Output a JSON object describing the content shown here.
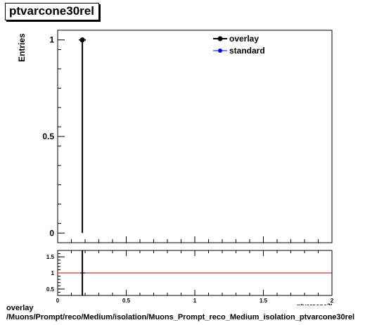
{
  "title": "ptvarcone30rel",
  "caption": {
    "line1": "overlay",
    "line2": "/Muons/Prompt/reco/Medium/isolation/Muons_Prompt_reco_Medium_isolation_ptvarcone30rel"
  },
  "colors": {
    "overlay": "#000000",
    "standard": "#0000ff",
    "ratio_line": "#cc0000"
  },
  "chart_data": [
    {
      "type": "line",
      "panel": "main",
      "title": "ptvarcone30rel",
      "xlabel": "ptvarcone30rel",
      "ylabel": "Entries",
      "xlim": [
        0,
        2
      ],
      "ylim": [
        -0.05,
        1.05
      ],
      "yticks": [
        0,
        0.5,
        1
      ],
      "ytick_labels": [
        "0",
        "0.5",
        "1"
      ],
      "grid": false,
      "legend_position": "top-right",
      "series": [
        {
          "name": "overlay",
          "color": "#000000",
          "x": [
            0.18
          ],
          "y": [
            1
          ]
        },
        {
          "name": "standard",
          "color": "#0000ff",
          "x": [
            0.18
          ],
          "y": [
            1
          ]
        }
      ],
      "spike": {
        "x": 0.18,
        "y_from": 0,
        "y_to": 1
      }
    },
    {
      "type": "line",
      "panel": "ratio",
      "xlim": [
        0,
        2
      ],
      "ylim": [
        0.3,
        1.7
      ],
      "xticks": [
        0,
        0.5,
        1,
        1.5,
        2
      ],
      "xtick_labels": [
        "0",
        "0.5",
        "1",
        "1.5",
        "2"
      ],
      "yticks": [
        0.5,
        1,
        1.5
      ],
      "ytick_labels": [
        "0.5",
        "1",
        "1.5"
      ],
      "reference_line": 1,
      "series": [
        {
          "name": "",
          "color": "#000000",
          "x": [
            0.18
          ],
          "y": [
            1
          ]
        }
      ],
      "spike": {
        "x": 0.18,
        "y_from": 0.3,
        "y_to": 1.7
      }
    }
  ]
}
